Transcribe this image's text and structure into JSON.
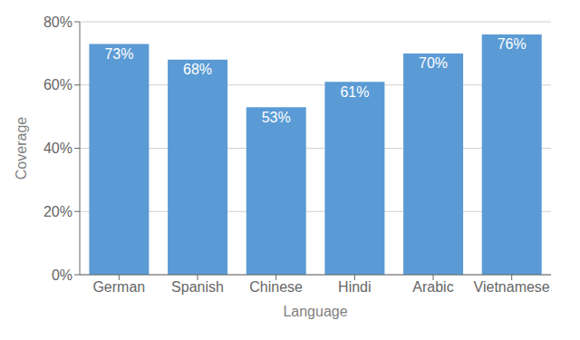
{
  "chart_data": {
    "type": "bar",
    "categories": [
      "German",
      "Spanish",
      "Chinese",
      "Hindi",
      "Arabic",
      "Vietnamese"
    ],
    "values": [
      73,
      68,
      53,
      61,
      70,
      76
    ],
    "value_labels": [
      "73%",
      "68%",
      "53%",
      "61%",
      "70%",
      "76%"
    ],
    "data_labels": true,
    "color": "#5b9bd5",
    "xlabel": "Language",
    "ylabel": "Coverage",
    "ylim": [
      0,
      80
    ],
    "yticks": [
      {
        "value": 0,
        "label": "0%"
      },
      {
        "value": 20,
        "label": "20%"
      },
      {
        "value": 40,
        "label": "40%"
      },
      {
        "value": 60,
        "label": "60%"
      },
      {
        "value": 80,
        "label": "80%"
      }
    ],
    "grid": true
  }
}
